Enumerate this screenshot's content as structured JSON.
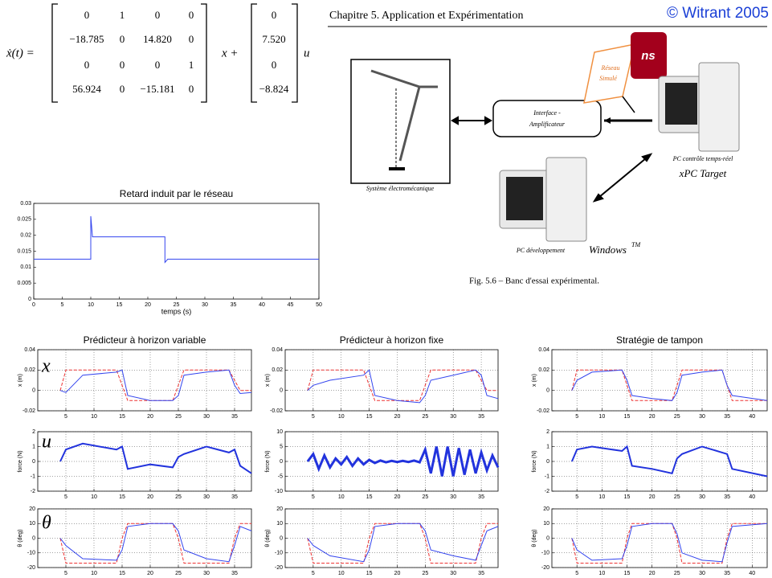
{
  "equation": {
    "lhs": "ẋ(t) =",
    "A": [
      [
        "0",
        "1",
        "0",
        "0"
      ],
      [
        "−18.785",
        "0",
        "14.820",
        "0"
      ],
      [
        "0",
        "0",
        "0",
        "1"
      ],
      [
        "56.924",
        "0",
        "−15.181",
        "0"
      ]
    ],
    "x_plus": "x +",
    "B": [
      "0",
      "7.520",
      "0",
      "−8.824"
    ],
    "u": "u"
  },
  "header": "Chapitre 5.  Application et Expérimentation",
  "copyright": "© Witrant 2005",
  "diagram": {
    "system": "Système électromécanique",
    "interface": [
      "Interface -",
      "Amplificateur"
    ],
    "network": [
      "Réseau",
      "Simulé"
    ],
    "ns": "ns",
    "pc_rt": "PC contrôle temps-réel",
    "xpc": "xPC Target",
    "pc_dev": "PC développement",
    "windows": "Windows",
    "tm": "TM",
    "caption": "Fig. 5.6 – Banc d'essai expérimental."
  },
  "row_labels": [
    "x",
    "u",
    "θ"
  ],
  "charts": [
    {
      "type": "line",
      "title": "Retard induit par le réseau",
      "xlabel": "temps (s)",
      "xlim": [
        0,
        50
      ],
      "xticks": [
        0,
        5,
        10,
        15,
        20,
        25,
        30,
        35,
        40,
        45,
        50
      ],
      "ylim": [
        0,
        0.03
      ],
      "yticks": [
        0,
        0.005,
        0.01,
        0.015,
        0.02,
        0.025,
        0.03
      ],
      "grid": false,
      "x": [
        0,
        10,
        10,
        10.3,
        23,
        23,
        23.5,
        50
      ],
      "series": [
        {
          "color": "#3344ee",
          "values": [
            0.0125,
            0.0125,
            0.026,
            0.0195,
            0.0195,
            0.0115,
            0.0125,
            0.0125
          ]
        }
      ]
    },
    {
      "type": "line",
      "title": "Prédicteur à horizon variable",
      "ylabel": "x (m)",
      "xlim": [
        0,
        38
      ],
      "xticks": [
        5,
        10,
        15,
        20,
        25,
        30,
        35
      ],
      "ylim": [
        -0.02,
        0.04
      ],
      "yticks": [
        -0.02,
        0,
        0.02,
        0.04
      ],
      "grid": true,
      "x": [
        4,
        5,
        8,
        14,
        15,
        16,
        20,
        24,
        25,
        26,
        30,
        34,
        35,
        36,
        38
      ],
      "series": [
        {
          "color": "#ee3333",
          "dash": true,
          "values": [
            0,
            0.02,
            0.02,
            0.02,
            0.005,
            -0.01,
            -0.01,
            -0.01,
            0.005,
            0.02,
            0.02,
            0.02,
            0.01,
            0,
            0
          ]
        },
        {
          "color": "#3344ee",
          "values": [
            0,
            -0.002,
            0.015,
            0.018,
            0.02,
            -0.005,
            -0.01,
            -0.01,
            -0.005,
            0.015,
            0.018,
            0.02,
            0.005,
            -0.003,
            -0.002
          ]
        }
      ]
    },
    {
      "type": "line",
      "title": "Prédicteur à horizon fixe",
      "ylabel": "x (m)",
      "xlim": [
        0,
        38
      ],
      "xticks": [
        5,
        10,
        15,
        20,
        25,
        30,
        35
      ],
      "ylim": [
        -0.02,
        0.04
      ],
      "yticks": [
        -0.02,
        0,
        0.02,
        0.04
      ],
      "grid": true,
      "x": [
        4,
        5,
        8,
        14,
        15,
        16,
        20,
        24,
        25,
        26,
        30,
        34,
        35,
        36,
        38
      ],
      "series": [
        {
          "color": "#ee3333",
          "dash": true,
          "values": [
            0,
            0.02,
            0.02,
            0.02,
            0.005,
            -0.01,
            -0.01,
            -0.01,
            0.005,
            0.02,
            0.02,
            0.02,
            0.01,
            0,
            0
          ]
        },
        {
          "color": "#3344ee",
          "values": [
            0,
            0.005,
            0.01,
            0.015,
            0.02,
            -0.005,
            -0.01,
            -0.012,
            -0.005,
            0.01,
            0.015,
            0.02,
            0.015,
            -0.005,
            -0.008
          ]
        }
      ]
    },
    {
      "type": "line",
      "title": "Stratégie de tampon",
      "ylabel": "x (m)",
      "xlim": [
        0,
        43
      ],
      "xticks": [
        5,
        10,
        15,
        20,
        25,
        30,
        35,
        40
      ],
      "ylim": [
        -0.02,
        0.04
      ],
      "yticks": [
        -0.02,
        0,
        0.02,
        0.04
      ],
      "grid": true,
      "x": [
        4,
        5,
        8,
        14,
        15,
        16,
        20,
        24,
        25,
        26,
        30,
        34,
        35,
        36,
        43
      ],
      "series": [
        {
          "color": "#ee3333",
          "dash": true,
          "values": [
            0,
            0.02,
            0.02,
            0.02,
            0.005,
            -0.01,
            -0.01,
            -0.01,
            0.005,
            0.02,
            0.02,
            0.02,
            0.005,
            -0.01,
            -0.01
          ]
        },
        {
          "color": "#3344ee",
          "values": [
            0,
            0.01,
            0.018,
            0.02,
            0.01,
            -0.005,
            -0.008,
            -0.01,
            -0.002,
            0.015,
            0.018,
            0.02,
            0.005,
            -0.005,
            -0.01
          ]
        }
      ]
    },
    {
      "type": "line",
      "ylabel": "force (N)",
      "xlim": [
        0,
        38
      ],
      "xticks": [
        5,
        10,
        15,
        20,
        25,
        30,
        35
      ],
      "ylim": [
        -2,
        2
      ],
      "yticks": [
        -2,
        -1,
        0,
        1,
        2
      ],
      "grid": true,
      "x": [
        4,
        5,
        8,
        14,
        15,
        16,
        20,
        24,
        25,
        26,
        30,
        34,
        35,
        36,
        38
      ],
      "series": [
        {
          "color": "#2233dd",
          "width": 2,
          "values": [
            0,
            0.8,
            1.2,
            0.8,
            1,
            -0.5,
            -0.2,
            -0.4,
            0.3,
            0.5,
            1,
            0.6,
            0.8,
            -0.3,
            -0.8
          ]
        }
      ]
    },
    {
      "type": "line",
      "ylabel": "force (N)",
      "xlim": [
        0,
        38
      ],
      "xticks": [
        5,
        10,
        15,
        20,
        25,
        30,
        35
      ],
      "ylim": [
        -10,
        10
      ],
      "yticks": [
        -10,
        -5,
        0,
        5,
        10
      ],
      "grid": true,
      "x": [
        4,
        5,
        6,
        7,
        8,
        9,
        10,
        11,
        12,
        13,
        14,
        15,
        16,
        17,
        18,
        19,
        20,
        21,
        22,
        23,
        24,
        25,
        26,
        27,
        28,
        29,
        30,
        31,
        32,
        33,
        34,
        35,
        36,
        37,
        38
      ],
      "series": [
        {
          "color": "#2233dd",
          "width": 3,
          "values": [
            0,
            2.5,
            -2.5,
            2,
            -2,
            1,
            -1,
            1.5,
            -1.5,
            1,
            -1,
            0.5,
            -0.5,
            0.3,
            -0.3,
            0.2,
            -0.2,
            0.2,
            -0.2,
            0.3,
            -0.3,
            4,
            -4,
            5,
            -5,
            5,
            -5,
            4.5,
            -4.5,
            4,
            -4,
            3,
            -3,
            2,
            -2
          ]
        }
      ]
    },
    {
      "type": "line",
      "ylabel": "force (N)",
      "xlim": [
        0,
        43
      ],
      "xticks": [
        5,
        10,
        15,
        20,
        25,
        30,
        35,
        40
      ],
      "ylim": [
        -2,
        2
      ],
      "yticks": [
        -2,
        -1,
        0,
        1,
        2
      ],
      "grid": true,
      "x": [
        4,
        5,
        8,
        14,
        15,
        16,
        20,
        24,
        25,
        26,
        30,
        34,
        35,
        36,
        43
      ],
      "series": [
        {
          "color": "#2233dd",
          "width": 2,
          "values": [
            0,
            0.8,
            1,
            0.7,
            1,
            -0.3,
            -0.5,
            -0.8,
            0.2,
            0.5,
            1,
            0.6,
            0.5,
            -0.5,
            -1
          ]
        }
      ]
    },
    {
      "type": "line",
      "ylabel": "θ (deg)",
      "xlim": [
        0,
        38
      ],
      "xticks": [
        5,
        10,
        15,
        20,
        25,
        30,
        35
      ],
      "ylim": [
        -20,
        20
      ],
      "yticks": [
        -20,
        -10,
        0,
        10,
        20
      ],
      "grid": true,
      "x": [
        4,
        5,
        8,
        14,
        15,
        16,
        20,
        24,
        25,
        26,
        30,
        34,
        35,
        36,
        38
      ],
      "series": [
        {
          "color": "#ee3333",
          "dash": true,
          "values": [
            0,
            -17,
            -17,
            -17,
            0,
            10,
            10,
            10,
            0,
            -17,
            -17,
            -17,
            0,
            10,
            10
          ]
        },
        {
          "color": "#3344ee",
          "values": [
            0,
            -5,
            -14,
            -15,
            -8,
            8,
            10,
            10,
            5,
            -8,
            -14,
            -16,
            -5,
            8,
            5
          ]
        }
      ]
    },
    {
      "type": "line",
      "ylabel": "θ (deg)",
      "xlim": [
        0,
        38
      ],
      "xticks": [
        5,
        10,
        15,
        20,
        25,
        30,
        35
      ],
      "ylim": [
        -20,
        20
      ],
      "yticks": [
        -20,
        -10,
        0,
        10,
        20
      ],
      "grid": true,
      "x": [
        4,
        5,
        8,
        14,
        15,
        16,
        20,
        24,
        25,
        26,
        30,
        34,
        35,
        36,
        38
      ],
      "series": [
        {
          "color": "#ee3333",
          "dash": true,
          "values": [
            0,
            -17,
            -17,
            -17,
            0,
            10,
            10,
            10,
            0,
            -17,
            -17,
            -17,
            0,
            10,
            10
          ]
        },
        {
          "color": "#3344ee",
          "values": [
            0,
            -5,
            -12,
            -16,
            -8,
            8,
            10,
            10,
            5,
            -8,
            -12,
            -15,
            -5,
            5,
            8
          ]
        }
      ]
    },
    {
      "type": "line",
      "ylabel": "θ (deg)",
      "xlim": [
        0,
        43
      ],
      "xticks": [
        5,
        10,
        15,
        20,
        25,
        30,
        35,
        40
      ],
      "ylim": [
        -20,
        20
      ],
      "yticks": [
        -20,
        -10,
        0,
        10,
        20
      ],
      "grid": true,
      "x": [
        4,
        5,
        8,
        14,
        15,
        16,
        20,
        24,
        25,
        26,
        30,
        34,
        35,
        36,
        43
      ],
      "series": [
        {
          "color": "#ee3333",
          "dash": true,
          "values": [
            0,
            -17,
            -17,
            -17,
            0,
            10,
            10,
            10,
            0,
            -17,
            -17,
            -17,
            0,
            10,
            10
          ]
        },
        {
          "color": "#3344ee",
          "values": [
            0,
            -8,
            -15,
            -14,
            -5,
            8,
            10,
            10,
            3,
            -10,
            -15,
            -16,
            -3,
            8,
            10
          ]
        }
      ]
    }
  ]
}
